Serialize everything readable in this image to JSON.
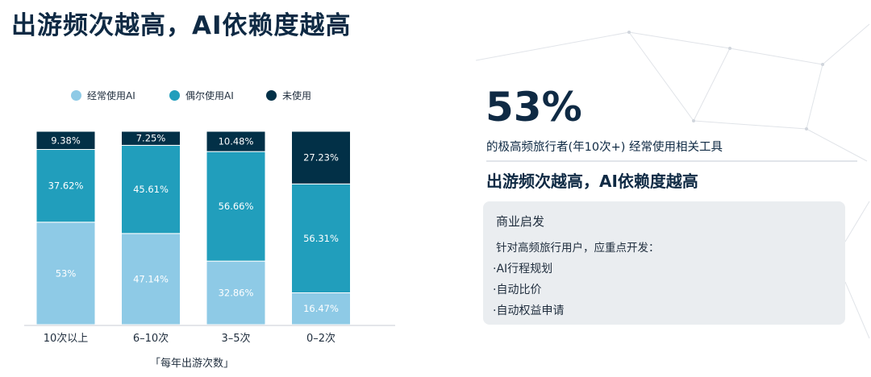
{
  "page": {
    "title": "出游频次越高，AI依赖度越高"
  },
  "chart_data": {
    "type": "bar",
    "stacked": true,
    "percent_stacked": true,
    "title": "",
    "xlabel": "「每年出游次数」",
    "ylabel": "",
    "legend_position": "top",
    "categories": [
      "10次以上",
      "6–10次",
      "3–5次",
      "0–2次"
    ],
    "series": [
      {
        "name": "经常使用AI",
        "color": "#8ecae6",
        "values": [
          53,
          47.14,
          32.86,
          16.47
        ],
        "labels": [
          "53%",
          "47.14%",
          "32.86%",
          "16.47%"
        ]
      },
      {
        "name": "偶尔使用AI",
        "color": "#219ebc",
        "values": [
          37.62,
          45.61,
          56.66,
          56.31
        ],
        "labels": [
          "37.62%",
          "45.61%",
          "56.66%",
          "56.31%"
        ]
      },
      {
        "name": "未使用",
        "color": "#023047",
        "values": [
          9.38,
          7.25,
          10.48,
          27.23
        ],
        "labels": [
          "9.38%",
          "7.25%",
          "10.48%",
          "27.23%"
        ]
      }
    ],
    "ylim": [
      0,
      100
    ],
    "grid": false
  },
  "insight": {
    "kpi": "53%",
    "kpi_desc": "的极高频旅行者(年10次+) 经常使用相关工具",
    "subtitle": "出游频次越高，AI依赖度越高"
  },
  "card": {
    "title": "商业启发",
    "intro": "针对高频旅行用户，应重点开发：",
    "items": [
      "·AI行程规划",
      "·自动比价",
      "·自动权益申请"
    ]
  }
}
